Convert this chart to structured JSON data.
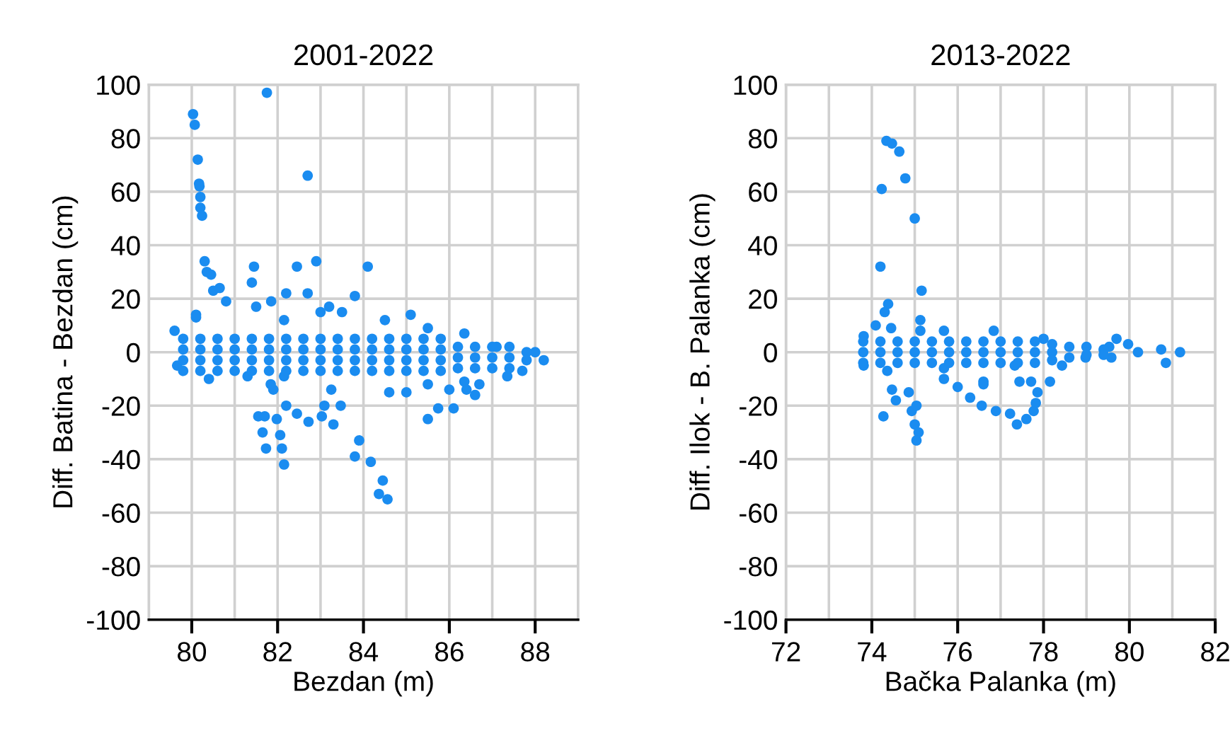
{
  "chart_data": [
    {
      "type": "scatter",
      "title": "2001-2022",
      "xlabel": "Bezdan (m)",
      "ylabel": "Diff. Batina - Bezdan (cm)",
      "xlim": [
        79,
        89
      ],
      "xticks": [
        {
          "value": 79,
          "label": null
        },
        80,
        {
          "value": 81,
          "label": null
        },
        82,
        {
          "value": 83,
          "label": null
        },
        84,
        {
          "value": 85,
          "label": null
        },
        86,
        {
          "value": 87,
          "label": null
        },
        88,
        {
          "value": 89,
          "label": null
        }
      ],
      "ylim": [
        -100,
        100
      ],
      "yticks": [
        -100,
        -80,
        -60,
        -40,
        -20,
        0,
        20,
        40,
        60,
        80,
        100
      ],
      "grid": true,
      "marker": "circle",
      "series": [
        {
          "color": "#1a8cf0",
          "x": [
            80.03,
            80.07,
            80.14,
            80.17,
            80.18,
            80.2,
            80.2,
            80.24,
            81.75,
            82.7,
            80.3,
            80.35,
            80.45,
            80.5,
            80.65,
            81.45,
            81.4,
            82.45,
            82.9,
            84.1,
            82.2,
            82.7,
            83.8,
            83.2,
            85.1,
            81.85,
            80.1,
            81.55,
            81.7,
            81.65,
            81.73,
            82.06,
            82.1,
            82.15,
            81.98,
            82.2,
            82.45,
            82.72,
            83.03,
            83.09,
            83.3,
            83.47,
            83.9,
            83.8,
            84.17,
            84.45,
            84.36,
            84.56,
            81.9,
            81.84,
            85,
            85.5,
            85.74,
            86.1,
            86.4,
            86.6,
            86.7,
            86,
            79.6,
            80.1,
            80.8,
            81.5,
            82.15,
            83.0,
            83.5,
            84.5,
            85.5,
            86.35,
            87.1,
            88.0,
            79.66,
            80.4,
            81.3,
            82.15,
            83.25,
            84.6,
            85.5,
            86.35,
            87.35,
            87.7,
            88.2,
            79.8,
            79.8,
            79.8,
            79.8,
            80.2,
            80.2,
            80.2,
            80.2,
            80.6,
            80.6,
            80.6,
            80.6,
            81.0,
            81.0,
            81.0,
            81.0,
            81.4,
            81.4,
            81.4,
            81.4,
            81.8,
            81.8,
            81.8,
            81.8,
            82.2,
            82.2,
            82.2,
            82.2,
            82.6,
            82.6,
            82.6,
            82.6,
            83.0,
            83.0,
            83.0,
            83.0,
            83.4,
            83.4,
            83.4,
            83.4,
            83.8,
            83.8,
            83.8,
            83.8,
            84.2,
            84.2,
            84.2,
            84.2,
            84.6,
            84.6,
            84.6,
            84.6,
            85.0,
            85.0,
            85.0,
            85.0,
            85.4,
            85.4,
            85.4,
            85.4,
            85.8,
            85.8,
            85.8,
            85.8,
            86.2,
            86.2,
            86.2,
            86.6,
            86.6,
            86.6,
            87.0,
            87.0,
            87.0,
            87.4,
            87.4,
            87.4,
            87.8,
            87.8
          ],
          "values": [
            89,
            85,
            72,
            63,
            62,
            58,
            54,
            51,
            97,
            66,
            34,
            30,
            29,
            23,
            24,
            32,
            26,
            32,
            34,
            32,
            22,
            22,
            21,
            17,
            14,
            19,
            13,
            -24,
            -24,
            -30,
            -36,
            -31,
            -36,
            -42,
            -25,
            -20,
            -23,
            -26,
            -24,
            -20,
            -27,
            -20,
            -33,
            -39,
            -41,
            -48,
            -53,
            -55,
            -14,
            -12,
            -15,
            -25,
            -21,
            -21,
            -14,
            -16,
            -12,
            -14,
            8,
            14,
            19,
            17,
            12,
            15,
            15,
            12,
            9,
            7,
            2,
            0,
            -5,
            -10,
            -9,
            -9,
            -14,
            -15,
            -12,
            -11,
            -9,
            -7,
            -3,
            5,
            1,
            -3,
            -7,
            5,
            1,
            -3,
            -7,
            5,
            1,
            -3,
            -7,
            5,
            1,
            -3,
            -7,
            5,
            1,
            -3,
            -7,
            5,
            1,
            -3,
            -7,
            5,
            1,
            -3,
            -7,
            5,
            1,
            -3,
            -7,
            5,
            1,
            -3,
            -7,
            5,
            1,
            -3,
            -7,
            5,
            1,
            -3,
            -7,
            5,
            1,
            -3,
            -7,
            5,
            1,
            -3,
            -7,
            5,
            1,
            -3,
            -7,
            5,
            1,
            -3,
            -7,
            5,
            1,
            -3,
            -7,
            2,
            -2,
            -6,
            2,
            -2,
            -6,
            2,
            -2,
            -6,
            2,
            -2,
            -6,
            0,
            -3
          ]
        }
      ]
    },
    {
      "type": "scatter",
      "title": "2013-2022",
      "xlabel": "Bačka Palanka (m)",
      "ylabel": "Diff. Ilok - B. Palanka (cm)",
      "xlim": [
        72,
        82
      ],
      "xticks": [
        72,
        {
          "value": 73,
          "label": null
        },
        74,
        {
          "value": 75,
          "label": null
        },
        76,
        {
          "value": 77,
          "label": null
        },
        78,
        {
          "value": 79,
          "label": null
        },
        80,
        {
          "value": 81,
          "label": null
        },
        82
      ],
      "ylim": [
        -100,
        100
      ],
      "yticks": [
        -100,
        -80,
        -60,
        -40,
        -20,
        0,
        20,
        40,
        60,
        80,
        100
      ],
      "grid": true,
      "marker": "circle",
      "series": [
        {
          "color": "#1a8cf0",
          "x": [
            74.34,
            74.47,
            74.64,
            74.78,
            74.23,
            75.0,
            74.2,
            75.16,
            74.38,
            74.3,
            75.13,
            74.45,
            74.09,
            74.27,
            74.56,
            74.47,
            74.86,
            74.93,
            75.04,
            75.0,
            75.09,
            75.04,
            75.68,
            76.0,
            76.29,
            76.56,
            76.89,
            77.22,
            77.38,
            77.6,
            77.77,
            77.82,
            77.86,
            77.71,
            78.15,
            77.44,
            76.6,
            73.81,
            75.13,
            75.68,
            76.84,
            78.0,
            79.7,
            79.97,
            80.74,
            81.18,
            80.85,
            79.58,
            79.53,
            80.2,
            73.81,
            74.36,
            75.68,
            76.6,
            77.33,
            78.43,
            78.98,
            73.8,
            73.8,
            73.8,
            74.2,
            74.2,
            74.2,
            74.6,
            74.6,
            74.6,
            75.0,
            75.0,
            75.0,
            75.4,
            75.4,
            75.4,
            75.8,
            75.8,
            75.8,
            76.2,
            76.2,
            76.2,
            76.6,
            76.6,
            76.6,
            77.0,
            77.0,
            77.0,
            77.4,
            77.4,
            77.4,
            77.8,
            77.8,
            77.8,
            78.2,
            78.2,
            78.2,
            78.6,
            78.6,
            79.0,
            79.0,
            79.4,
            79.4
          ],
          "values": [
            79,
            78,
            75,
            65,
            61,
            50,
            32,
            23,
            18,
            15,
            12,
            9,
            10,
            -24,
            -18,
            -14,
            -15,
            -22,
            -20,
            -27,
            -30,
            -33,
            -10,
            -13,
            -17,
            -20,
            -22,
            -23,
            -27,
            -25,
            -22,
            -19,
            -15,
            -11,
            -11,
            -11,
            -11,
            6,
            8,
            8,
            8,
            5,
            5,
            3,
            1,
            0,
            -4,
            -2,
            2,
            0,
            -5,
            -7,
            -6,
            -12,
            -5,
            -5,
            -2,
            4,
            0,
            -4,
            4,
            0,
            -4,
            4,
            0,
            -4,
            4,
            0,
            -4,
            4,
            0,
            -4,
            4,
            0,
            -4,
            4,
            0,
            -4,
            4,
            0,
            -4,
            4,
            0,
            -4,
            4,
            0,
            -4,
            4,
            0,
            -4,
            3,
            0,
            -3,
            2,
            -2,
            2,
            -1,
            1,
            -1
          ]
        }
      ]
    }
  ]
}
